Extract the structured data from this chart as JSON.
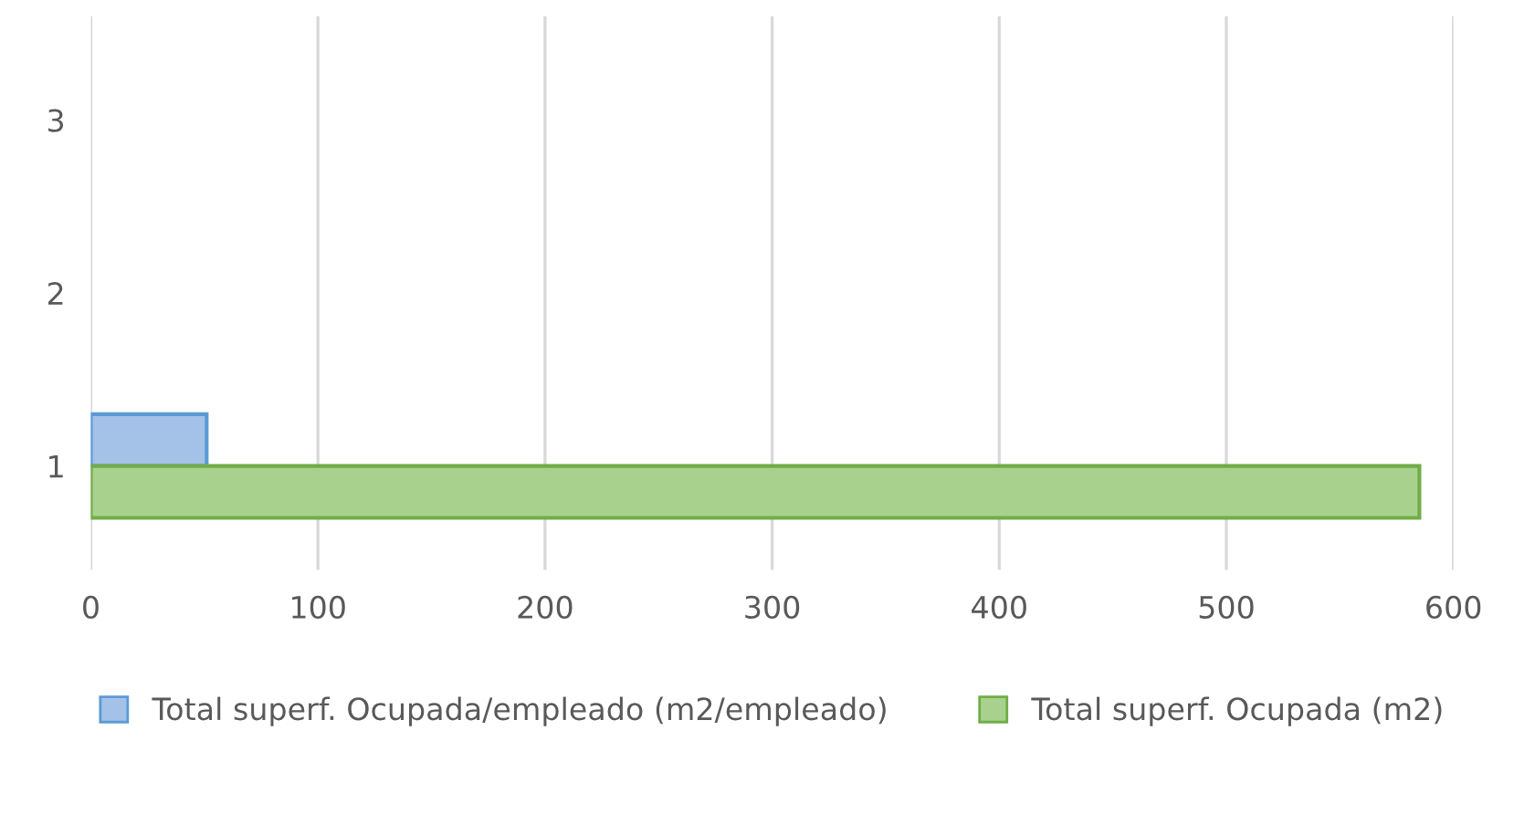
{
  "chart_data": {
    "type": "bar",
    "orientation": "horizontal",
    "categories": [
      "3",
      "2",
      "1"
    ],
    "series": [
      {
        "name": "Total superf. Ocupada/empleado (m2/empleado)",
        "color": "#a4c2e8",
        "values": [
          null,
          null,
          51
        ]
      },
      {
        "name": "Total superf. Ocupada (m2)",
        "color": "#a9d18e",
        "values": [
          null,
          null,
          585
        ]
      }
    ],
    "xlim": [
      0,
      600
    ],
    "xticks": [
      0,
      100,
      200,
      300,
      400,
      500,
      600
    ],
    "grid": "x",
    "legend": "bottom"
  }
}
